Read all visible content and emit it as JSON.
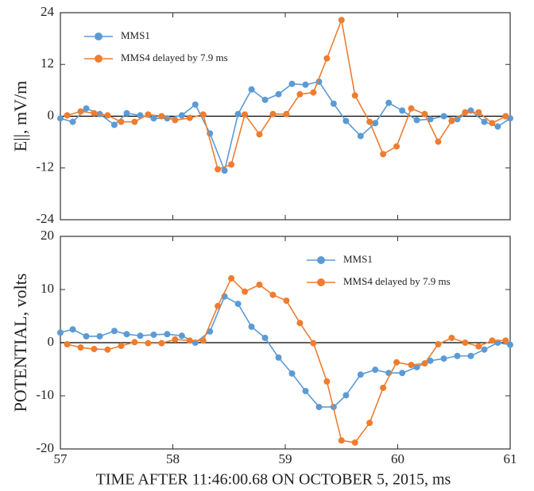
{
  "chart_data": [
    {
      "type": "line",
      "ylabel": "E||, mV/m",
      "legend": "upper left",
      "xlim": [
        57,
        61
      ],
      "xticks": [
        57,
        58,
        59,
        60,
        61
      ],
      "ylim": [
        -24,
        24
      ],
      "yticks": [
        -24,
        -12,
        0,
        12,
        24
      ],
      "zero_line": true,
      "series": [
        {
          "name": "MMS1",
          "color": "#5b9bd5",
          "x": [
            57.0,
            57.11,
            57.23,
            57.35,
            57.48,
            57.59,
            57.71,
            57.83,
            57.95,
            58.08,
            58.2,
            58.33,
            58.46,
            58.58,
            58.7,
            58.82,
            58.94,
            59.06,
            59.18,
            59.3,
            59.43,
            59.54,
            59.67,
            59.8,
            59.92,
            60.04,
            60.17,
            60.29,
            60.41,
            60.53,
            60.65,
            60.77,
            60.89,
            61.0
          ],
          "values": [
            -0.5,
            -1.3,
            1.8,
            0.5,
            -2,
            0.7,
            0.2,
            -0.5,
            -0.5,
            0.2,
            2.7,
            -4,
            -12.6,
            0.5,
            6.2,
            3.8,
            5.1,
            7.5,
            7.3,
            8,
            2.9,
            -1.1,
            -4.6,
            -1.6,
            3.1,
            1.3,
            -0.9,
            -0.7,
            0,
            -0.7,
            1.3,
            -1.3,
            -2.4,
            -0.5
          ]
        },
        {
          "name": "MMS4 delayed by 7.9 ms",
          "color": "#ed7d31",
          "x": [
            57.06,
            57.18,
            57.3,
            57.42,
            57.54,
            57.66,
            57.78,
            57.9,
            58.02,
            58.15,
            58.27,
            58.4,
            58.52,
            58.64,
            58.77,
            58.89,
            59.01,
            59.13,
            59.25,
            59.37,
            59.5,
            59.62,
            59.75,
            59.87,
            59.99,
            60.12,
            60.24,
            60.36,
            60.48,
            60.6,
            60.72,
            60.84,
            60.96
          ],
          "values": [
            0.2,
            1.1,
            0.7,
            0.2,
            -1.3,
            -1.3,
            0.4,
            0,
            -0.9,
            -0.4,
            0.4,
            -12.3,
            -11.2,
            0.4,
            -4.2,
            0.5,
            0.5,
            5.1,
            5.5,
            13.4,
            22.3,
            4.8,
            -1.3,
            -8.8,
            -7,
            1.8,
            0.5,
            -5.9,
            -1.1,
            0.9,
            0.9,
            -1.6,
            0
          ]
        }
      ]
    },
    {
      "type": "line",
      "ylabel": "POTENTIAL, volts",
      "xlabel": "TIME AFTER 11:46:00.68 ON OCTOBER 5, 2015, ms",
      "legend": "upper center",
      "xlim": [
        57,
        61
      ],
      "xticks": [
        57,
        58,
        59,
        60,
        61
      ],
      "ylim": [
        -20,
        20
      ],
      "yticks": [
        -20,
        -10,
        0,
        10,
        20
      ],
      "zero_line": true,
      "series": [
        {
          "name": "MMS1",
          "color": "#5b9bd5",
          "x": [
            57.0,
            57.11,
            57.23,
            57.35,
            57.48,
            57.59,
            57.71,
            57.83,
            57.95,
            58.08,
            58.2,
            58.33,
            58.46,
            58.58,
            58.7,
            58.82,
            58.94,
            59.06,
            59.18,
            59.3,
            59.43,
            59.54,
            59.67,
            59.8,
            59.92,
            60.04,
            60.17,
            60.29,
            60.41,
            60.53,
            60.65,
            60.77,
            60.89,
            61.0
          ],
          "values": [
            1.9,
            2.5,
            1.2,
            1.2,
            2.2,
            1.6,
            1.3,
            1.5,
            1.6,
            1.3,
            0,
            2.1,
            8.7,
            7.3,
            3,
            0.9,
            -2.8,
            -5.8,
            -9.1,
            -12.1,
            -12.1,
            -9.9,
            -6,
            -5.1,
            -5.7,
            -5.7,
            -4.6,
            -3.4,
            -3,
            -2.5,
            -2.5,
            -1.3,
            0,
            -0.4
          ]
        },
        {
          "name": "MMS4 delayed by 7.9 ms",
          "color": "#ed7d31",
          "x": [
            57.06,
            57.18,
            57.3,
            57.42,
            57.54,
            57.66,
            57.78,
            57.9,
            58.02,
            58.15,
            58.27,
            58.4,
            58.52,
            58.64,
            58.77,
            58.89,
            59.01,
            59.13,
            59.25,
            59.37,
            59.5,
            59.62,
            59.75,
            59.87,
            59.99,
            60.12,
            60.24,
            60.36,
            60.48,
            60.6,
            60.72,
            60.84,
            60.96
          ],
          "values": [
            -0.3,
            -0.9,
            -1.2,
            -1.3,
            -0.6,
            0.1,
            -0.1,
            -0.1,
            0.6,
            0.4,
            0.4,
            6.9,
            12.1,
            9.6,
            10.9,
            9,
            7.9,
            3.7,
            -0.1,
            -7.3,
            -18.4,
            -18.8,
            -15.1,
            -8.5,
            -3.7,
            -4.2,
            -3.9,
            -0.3,
            0.9,
            0,
            -0.7,
            0.4,
            0.4
          ]
        }
      ]
    }
  ]
}
